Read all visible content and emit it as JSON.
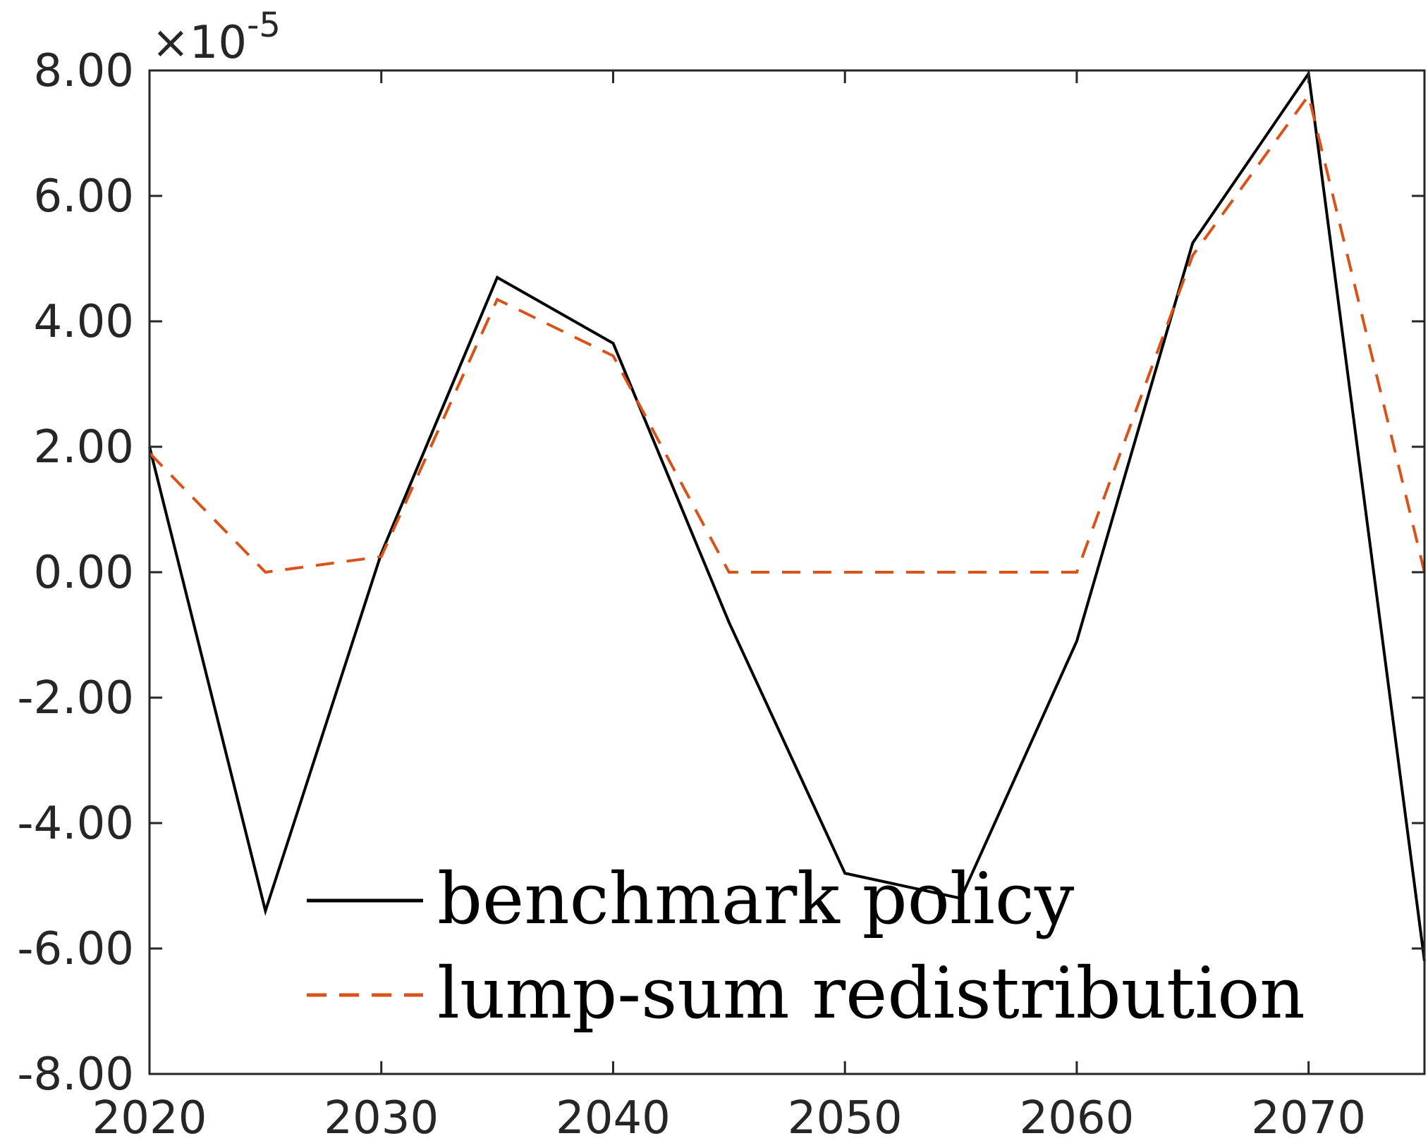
{
  "chart_data": {
    "type": "line",
    "x": [
      2020,
      2025,
      2030,
      2035,
      2040,
      2045,
      2050,
      2055,
      2060,
      2065,
      2070,
      2075
    ],
    "xlim": [
      2020,
      2075
    ],
    "ylim": [
      -8,
      8
    ],
    "x_ticks": [
      "2020",
      "2030",
      "2040",
      "2050",
      "2060",
      "2070"
    ],
    "y_ticks": [
      "8.00",
      "6.00",
      "4.00",
      "2.00",
      "0.00",
      "-2.00",
      "-4.00",
      "-6.00",
      "-8.00"
    ],
    "y_multiplier": {
      "base": "×10",
      "exponent": "-5"
    },
    "grid": false,
    "legend_position": "bottom-left",
    "series": [
      {
        "name": "benchmark policy",
        "color": "#000000",
        "style": "solid",
        "values": [
          2.0,
          -5.4,
          0.3,
          4.7,
          3.65,
          -0.8,
          -4.8,
          -5.2,
          -1.1,
          5.25,
          7.95,
          -6.2
        ]
      },
      {
        "name": "lump-sum redistribution",
        "color": "#D95319",
        "style": "dashed",
        "values": [
          1.9,
          0.0,
          0.25,
          4.35,
          3.45,
          0.0,
          0.0,
          0.0,
          0.0,
          5.05,
          7.6,
          0.0
        ]
      }
    ]
  }
}
